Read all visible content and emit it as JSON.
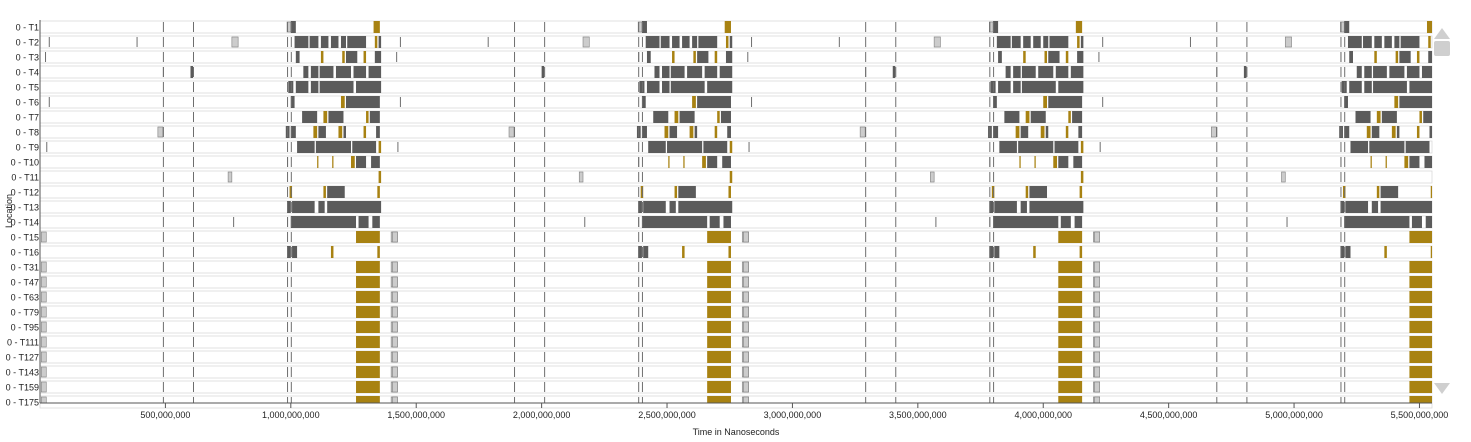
{
  "chart_data": {
    "type": "timeline",
    "ylabel": "Location",
    "xlabel": "Time in Nanoseconds",
    "xlim": [
      0,
      5550000000
    ],
    "x_ticks": [
      500000000,
      1000000000,
      1500000000,
      2000000000,
      2500000000,
      3000000000,
      3500000000,
      4000000000,
      4500000000,
      5000000000,
      5500000000
    ],
    "x_tick_labels": [
      "500,000,000",
      "1,000,000,000",
      "1,500,000,000",
      "2,000,000,000",
      "2,500,000,000",
      "3,000,000,000",
      "3,500,000,000",
      "4,000,000,000",
      "4,500,000,000",
      "5,000,000,000",
      "5,500,000,000"
    ],
    "rows": [
      "0 - T1",
      "0 - T2",
      "0 - T3",
      "0 - T4",
      "0 - T5",
      "0 - T6",
      "0 - T7",
      "0 - T8",
      "0 - T9",
      "0 - T10",
      "0 - T11",
      "0 - T12",
      "0 - T13",
      "0 - T14",
      "0 - T15",
      "0 - T16",
      "0 - T31",
      "0 - T47",
      "0 - T63",
      "0 - T79",
      "0 - T95",
      "0 - T111",
      "0 - T127",
      "0 - T143",
      "0 - T159",
      "0 - T175"
    ],
    "period": 1400000000,
    "phase_offsets": [
      0,
      1400000000,
      2800000000,
      4200000000
    ],
    "colors": {
      "compute": "#5b5b5b",
      "sync": "#a88212",
      "idle": "#cccccc",
      "stroke": "#808080"
    },
    "row_events": {
      "T1": [
        [
          985000000,
          1000000000,
          "idle"
        ],
        [
          1000000000,
          1020000000,
          "compute"
        ],
        [
          1330000000,
          1355000000,
          "sync"
        ]
      ],
      "T2": [
        [
          35000000,
          40000000,
          "tick"
        ],
        [
          385000000,
          390000000,
          "tick"
        ],
        [
          765000000,
          790000000,
          "idle"
        ],
        [
          1015000000,
          1070000000,
          "compute"
        ],
        [
          1075000000,
          1110000000,
          "compute"
        ],
        [
          1120000000,
          1150000000,
          "compute"
        ],
        [
          1160000000,
          1190000000,
          "compute"
        ],
        [
          1200000000,
          1220000000,
          "compute"
        ],
        [
          1225000000,
          1300000000,
          "compute"
        ],
        [
          1335000000,
          1345000000,
          "sync"
        ],
        [
          1350000000,
          1360000000,
          "compute"
        ]
      ],
      "T3": [
        [
          20000000,
          25000000,
          "tick"
        ],
        [
          985000000,
          995000000,
          "tick"
        ],
        [
          1020000000,
          1035000000,
          "compute"
        ],
        [
          1120000000,
          1130000000,
          "sync"
        ],
        [
          1205000000,
          1215000000,
          "sync"
        ],
        [
          1220000000,
          1265000000,
          "compute"
        ],
        [
          1290000000,
          1300000000,
          "sync"
        ],
        [
          1335000000,
          1360000000,
          "compute"
        ]
      ],
      "T4": [
        [
          490000000,
          495000000,
          "tick"
        ],
        [
          600000000,
          610000000,
          "compute"
        ],
        [
          1050000000,
          1070000000,
          "compute"
        ],
        [
          1080000000,
          1110000000,
          "compute"
        ],
        [
          1115000000,
          1170000000,
          "compute"
        ],
        [
          1180000000,
          1240000000,
          "compute"
        ],
        [
          1250000000,
          1300000000,
          "compute"
        ],
        [
          1310000000,
          1360000000,
          "compute"
        ]
      ],
      "T5": [
        [
          990000000,
          1010000000,
          "compute"
        ],
        [
          1020000000,
          1070000000,
          "compute"
        ],
        [
          1080000000,
          1110000000,
          "compute"
        ],
        [
          1115000000,
          1250000000,
          "compute"
        ],
        [
          1260000000,
          1360000000,
          "compute"
        ]
      ],
      "T6": [
        [
          35000000,
          40000000,
          "tick"
        ],
        [
          1000000000,
          1015000000,
          "compute"
        ],
        [
          1200000000,
          1215000000,
          "sync"
        ],
        [
          1220000000,
          1355000000,
          "compute"
        ]
      ],
      "T7": [
        [
          1045000000,
          1105000000,
          "compute"
        ],
        [
          1130000000,
          1145000000,
          "sync"
        ],
        [
          1150000000,
          1210000000,
          "compute"
        ],
        [
          1300000000,
          1310000000,
          "sync"
        ],
        [
          1315000000,
          1355000000,
          "compute"
        ]
      ],
      "T8": [
        [
          470000000,
          490000000,
          "idle"
        ],
        [
          980000000,
          995000000,
          "compute"
        ],
        [
          1000000000,
          1020000000,
          "compute"
        ],
        [
          1090000000,
          1105000000,
          "sync"
        ],
        [
          1110000000,
          1140000000,
          "compute"
        ],
        [
          1190000000,
          1205000000,
          "sync"
        ],
        [
          1210000000,
          1220000000,
          "compute"
        ],
        [
          1290000000,
          1300000000,
          "sync"
        ],
        [
          1340000000,
          1355000000,
          "compute"
        ]
      ],
      "T9": [
        [
          25000000,
          30000000,
          "tick"
        ],
        [
          1025000000,
          1095000000,
          "compute"
        ],
        [
          1100000000,
          1240000000,
          "compute"
        ],
        [
          1245000000,
          1340000000,
          "compute"
        ],
        [
          1350000000,
          1360000000,
          "sync"
        ]
      ],
      "T10": [
        [
          985000000,
          995000000,
          "tick"
        ],
        [
          1105000000,
          1110000000,
          "sync"
        ],
        [
          1165000000,
          1170000000,
          "sync"
        ],
        [
          1240000000,
          1255000000,
          "sync"
        ],
        [
          1260000000,
          1300000000,
          "compute"
        ],
        [
          1320000000,
          1355000000,
          "compute"
        ]
      ],
      "T11": [
        [
          750000000,
          765000000,
          "idle"
        ],
        [
          1350000000,
          1360000000,
          "sync"
        ]
      ],
      "T12": [
        [
          995000000,
          1005000000,
          "sync"
        ],
        [
          1130000000,
          1140000000,
          "sync"
        ],
        [
          1145000000,
          1215000000,
          "compute"
        ],
        [
          1345000000,
          1355000000,
          "sync"
        ]
      ],
      "T13": [
        [
          490000000,
          495000000,
          "tick"
        ],
        [
          985000000,
          1000000000,
          "compute"
        ],
        [
          1005000000,
          1095000000,
          "compute"
        ],
        [
          1110000000,
          1135000000,
          "compute"
        ],
        [
          1145000000,
          1360000000,
          "compute"
        ]
      ],
      "T14": [
        [
          770000000,
          775000000,
          "tick"
        ],
        [
          985000000,
          995000000,
          "tick"
        ],
        [
          1000000000,
          1260000000,
          "compute"
        ],
        [
          1270000000,
          1310000000,
          "compute"
        ],
        [
          1325000000,
          1355000000,
          "compute"
        ]
      ],
      "T15": [
        [
          5000000,
          25000000,
          "idle"
        ],
        [
          1260000000,
          1355000000,
          "sync"
        ],
        [
          1400000000,
          1425000000,
          "idle"
        ]
      ],
      "T16": [
        [
          985000000,
          1000000000,
          "compute"
        ],
        [
          1005000000,
          1025000000,
          "compute"
        ],
        [
          1160000000,
          1170000000,
          "sync"
        ],
        [
          1345000000,
          1355000000,
          "sync"
        ]
      ],
      "T31": [
        [
          5000000,
          25000000,
          "idle"
        ],
        [
          1260000000,
          1355000000,
          "sync"
        ],
        [
          1400000000,
          1425000000,
          "idle"
        ]
      ],
      "T47": [
        [
          5000000,
          25000000,
          "idle"
        ],
        [
          1260000000,
          1355000000,
          "sync"
        ],
        [
          1400000000,
          1425000000,
          "idle"
        ]
      ],
      "T63": [
        [
          5000000,
          25000000,
          "idle"
        ],
        [
          1260000000,
          1355000000,
          "sync"
        ],
        [
          1400000000,
          1425000000,
          "idle"
        ]
      ],
      "T79": [
        [
          5000000,
          25000000,
          "idle"
        ],
        [
          1260000000,
          1355000000,
          "sync"
        ],
        [
          1400000000,
          1425000000,
          "idle"
        ]
      ],
      "T95": [
        [
          5000000,
          25000000,
          "idle"
        ],
        [
          1260000000,
          1355000000,
          "sync"
        ],
        [
          1400000000,
          1425000000,
          "idle"
        ]
      ],
      "T111": [
        [
          5000000,
          25000000,
          "idle"
        ],
        [
          1260000000,
          1355000000,
          "sync"
        ],
        [
          1400000000,
          1425000000,
          "idle"
        ]
      ],
      "T127": [
        [
          5000000,
          25000000,
          "idle"
        ],
        [
          1260000000,
          1355000000,
          "sync"
        ],
        [
          1400000000,
          1425000000,
          "idle"
        ]
      ],
      "T143": [
        [
          5000000,
          25000000,
          "idle"
        ],
        [
          1260000000,
          1355000000,
          "sync"
        ],
        [
          1400000000,
          1425000000,
          "idle"
        ]
      ],
      "T159": [
        [
          5000000,
          25000000,
          "idle"
        ],
        [
          1260000000,
          1355000000,
          "sync"
        ],
        [
          1400000000,
          1425000000,
          "idle"
        ]
      ],
      "T175": [
        [
          5000000,
          25000000,
          "idle"
        ],
        [
          1260000000,
          1355000000,
          "sync"
        ],
        [
          1400000000,
          1425000000,
          "idle"
        ]
      ]
    },
    "common_ticks": [
      490000000,
      610000000,
      985000000,
      1000000000
    ]
  }
}
